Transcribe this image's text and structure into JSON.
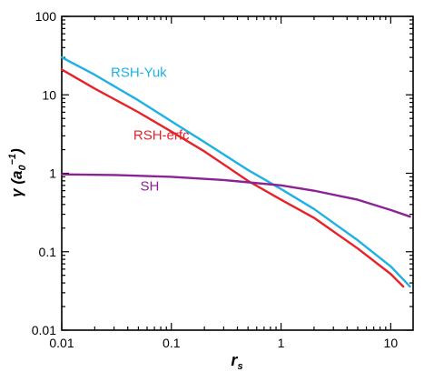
{
  "chart_data": {
    "type": "line",
    "xscale": "log",
    "yscale": "log",
    "xlim": [
      0.01,
      16
    ],
    "ylim": [
      0.01,
      100
    ],
    "grid": false,
    "xlabel": "r",
    "xlabel_sub": "s",
    "ylabel": "γ (a",
    "ylabel_sub": "0",
    "ylabel_sup": "−1",
    "ylabel_close": ")",
    "x_ticks": [
      {
        "value": 0.01,
        "label": "0.01"
      },
      {
        "value": 0.1,
        "label": "0.1"
      },
      {
        "value": 1,
        "label": "1"
      },
      {
        "value": 10,
        "label": "10"
      }
    ],
    "y_ticks": [
      {
        "value": 0.01,
        "label": "0.01"
      },
      {
        "value": 0.1,
        "label": "0.1"
      },
      {
        "value": 1,
        "label": "1"
      },
      {
        "value": 10,
        "label": "10"
      },
      {
        "value": 100,
        "label": "100"
      }
    ],
    "series": [
      {
        "name": "RSH-Yuk",
        "color": "#1fb1e6",
        "label_at": {
          "x": 0.028,
          "y": 17
        },
        "x": [
          0.01,
          0.02,
          0.05,
          0.1,
          0.2,
          0.5,
          1,
          2,
          5,
          10,
          15
        ],
        "y": [
          30,
          18,
          8.5,
          4.6,
          2.5,
          1.1,
          0.63,
          0.35,
          0.14,
          0.065,
          0.036
        ]
      },
      {
        "name": "RSH-erfc",
        "color": "#e52329",
        "label_at": {
          "x": 0.045,
          "y": 2.7
        },
        "x": [
          0.01,
          0.02,
          0.05,
          0.1,
          0.2,
          0.5,
          1,
          2,
          5,
          10,
          13
        ],
        "y": [
          21,
          12,
          6,
          3.4,
          1.9,
          0.8,
          0.46,
          0.27,
          0.11,
          0.052,
          0.036
        ]
      },
      {
        "name": "SH",
        "color": "#8b2296",
        "label_at": {
          "x": 0.052,
          "y": 0.6
        },
        "x": [
          0.01,
          0.03,
          0.1,
          0.3,
          1,
          2,
          5,
          10,
          15
        ],
        "y": [
          0.97,
          0.95,
          0.9,
          0.82,
          0.7,
          0.6,
          0.46,
          0.34,
          0.28
        ]
      }
    ]
  }
}
